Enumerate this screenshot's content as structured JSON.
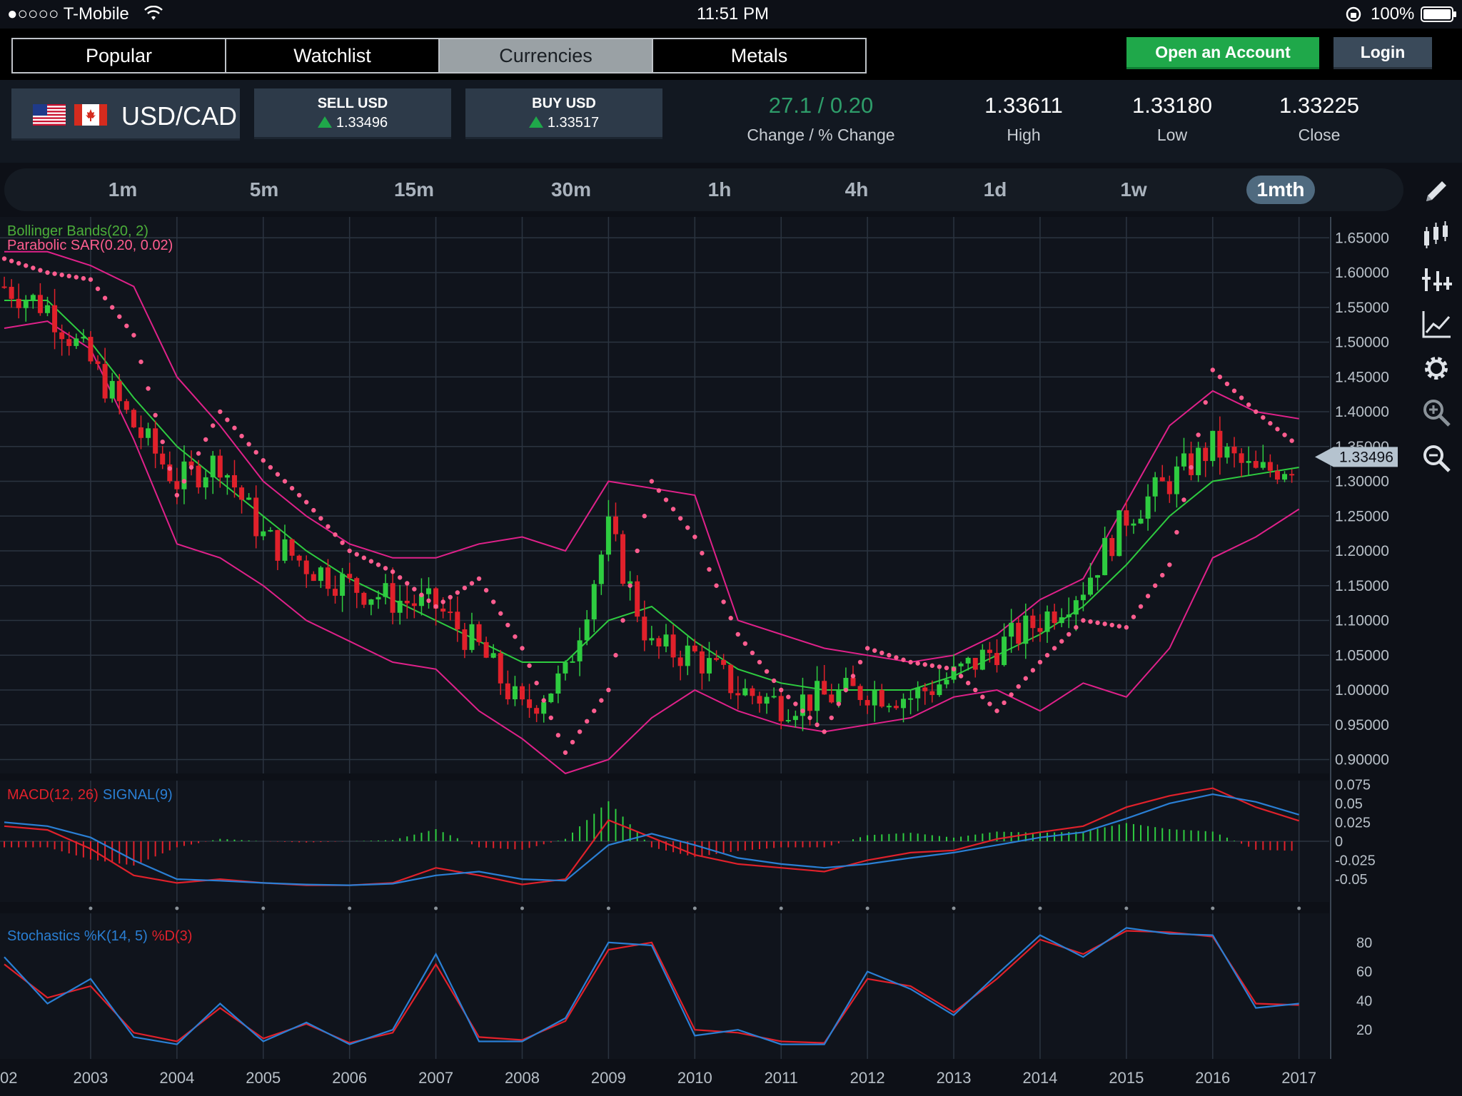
{
  "status": {
    "carrier": "●○○○○ T-Mobile",
    "time": "11:51 PM",
    "battery": "100%"
  },
  "tabs": [
    {
      "label": "Popular"
    },
    {
      "label": "Watchlist"
    },
    {
      "label": "Currencies"
    },
    {
      "label": "Metals"
    }
  ],
  "header": {
    "open_account": "Open an Account",
    "login": "Login"
  },
  "quote": {
    "pair": "USD/CAD",
    "sell_label": "SELL USD",
    "sell_price": "1.33496",
    "buy_label": "BUY USD",
    "buy_price": "1.33517",
    "change_value": "27.1 / 0.20",
    "change_label": "Change / % Change",
    "high_value": "1.33611",
    "high_label": "High",
    "low_value": "1.33180",
    "low_label": "Low",
    "close_value": "1.33225",
    "close_label": "Close",
    "colors": {
      "up": "#1fa84a",
      "accent": "#2e9d6a"
    }
  },
  "timeframes": [
    {
      "label": "1m"
    },
    {
      "label": "5m"
    },
    {
      "label": "15m"
    },
    {
      "label": "30m"
    },
    {
      "label": "1h"
    },
    {
      "label": "4h"
    },
    {
      "label": "1d"
    },
    {
      "label": "1w"
    },
    {
      "label": "1mth"
    }
  ],
  "active_timeframe": "1mth",
  "tools": [
    "pencil-icon",
    "candles-icon",
    "crosshair-icon",
    "line-chart-icon",
    "gear-icon",
    "zoom-in-icon",
    "zoom-out-icon"
  ],
  "chart_data": {
    "type": "line",
    "price": {
      "indicator_labels": [
        "Bollinger Bands(20, 2)",
        "Parabolic SAR(0.20, 0.02)"
      ],
      "y_ticks": [
        "1.65000",
        "1.60000",
        "1.55000",
        "1.50000",
        "1.45000",
        "1.40000",
        "1.35000",
        "1.30000",
        "1.25000",
        "1.20000",
        "1.15000",
        "1.10000",
        "1.05000",
        "1.00000",
        "0.95000",
        "0.90000"
      ],
      "ylim": [
        0.88,
        1.68
      ],
      "current_price": "1.33496",
      "x_years": [
        2002,
        2002.5,
        2003,
        2003.5,
        2004,
        2004.5,
        2005,
        2005.5,
        2006,
        2006.5,
        2007,
        2007.5,
        2008,
        2008.5,
        2009,
        2009.5,
        2010,
        2010.5,
        2011,
        2011.5,
        2012,
        2012.5,
        2013,
        2013.5,
        2014,
        2014.5,
        2015,
        2015.5,
        2016,
        2016.5,
        2017
      ],
      "close": [
        1.58,
        1.55,
        1.47,
        1.38,
        1.3,
        1.33,
        1.22,
        1.18,
        1.15,
        1.13,
        1.12,
        1.06,
        0.97,
        1.02,
        1.23,
        1.06,
        1.05,
        1.0,
        0.98,
        0.99,
        1.0,
        0.99,
        1.02,
        1.06,
        1.1,
        1.15,
        1.25,
        1.3,
        1.35,
        1.31,
        1.33
      ],
      "bb_mid": [
        1.56,
        1.56,
        1.5,
        1.42,
        1.35,
        1.3,
        1.25,
        1.2,
        1.16,
        1.13,
        1.1,
        1.07,
        1.04,
        1.04,
        1.1,
        1.12,
        1.07,
        1.03,
        1.01,
        1.0,
        1.0,
        1.0,
        1.02,
        1.05,
        1.08,
        1.12,
        1.18,
        1.25,
        1.3,
        1.31,
        1.32
      ],
      "bb_upper": [
        1.63,
        1.63,
        1.61,
        1.58,
        1.45,
        1.38,
        1.3,
        1.25,
        1.21,
        1.19,
        1.19,
        1.21,
        1.22,
        1.2,
        1.3,
        1.29,
        1.28,
        1.1,
        1.08,
        1.06,
        1.05,
        1.04,
        1.05,
        1.08,
        1.13,
        1.16,
        1.27,
        1.38,
        1.43,
        1.4,
        1.39
      ],
      "bb_lower": [
        1.52,
        1.53,
        1.49,
        1.36,
        1.21,
        1.19,
        1.15,
        1.1,
        1.07,
        1.04,
        1.03,
        0.97,
        0.93,
        0.88,
        0.9,
        0.96,
        1.0,
        0.97,
        0.95,
        0.94,
        0.95,
        0.96,
        0.99,
        1.0,
        0.97,
        1.01,
        0.99,
        1.06,
        1.19,
        1.22,
        1.26
      ],
      "sar": [
        1.62,
        1.6,
        1.59,
        1.51,
        1.28,
        1.4,
        1.33,
        1.27,
        1.2,
        1.17,
        1.12,
        1.16,
        1.06,
        0.91,
        1.0,
        1.3,
        1.22,
        1.08,
        1.0,
        0.94,
        1.06,
        1.04,
        1.03,
        0.97,
        1.04,
        1.1,
        1.09,
        1.18,
        1.46,
        1.4,
        1.35
      ]
    },
    "macd": {
      "label_macd": "MACD(12, 26)",
      "label_signal": "SIGNAL(9)",
      "y_ticks": [
        "0.075",
        "0.05",
        "0.025",
        "0",
        "-0.025",
        "-0.05"
      ],
      "ylim": [
        -0.08,
        0.08
      ],
      "macd": [
        0.02,
        0.015,
        -0.01,
        -0.045,
        -0.055,
        -0.05,
        -0.055,
        -0.058,
        -0.058,
        -0.055,
        -0.035,
        -0.045,
        -0.057,
        -0.05,
        0.028,
        0.005,
        -0.018,
        -0.03,
        -0.035,
        -0.04,
        -0.025,
        -0.015,
        -0.012,
        0.003,
        0.012,
        0.02,
        0.045,
        0.06,
        0.07,
        0.045,
        0.027
      ],
      "signal": [
        0.025,
        0.02,
        0.005,
        -0.025,
        -0.05,
        -0.052,
        -0.055,
        -0.057,
        -0.058,
        -0.056,
        -0.045,
        -0.04,
        -0.05,
        -0.052,
        -0.005,
        0.01,
        -0.005,
        -0.022,
        -0.03,
        -0.035,
        -0.03,
        -0.022,
        -0.015,
        -0.005,
        0.005,
        0.012,
        0.03,
        0.05,
        0.062,
        0.052,
        0.035
      ],
      "hist_colors": {
        "pos": "#2ecc40",
        "neg": "#e0212b"
      }
    },
    "stochastics": {
      "label_k": "Stochastics %K(14, 5)",
      "label_d": "%D(3)",
      "y_ticks": [
        "80",
        "60",
        "40",
        "20"
      ],
      "ylim": [
        0,
        100
      ],
      "k": [
        70,
        38,
        55,
        15,
        10,
        38,
        12,
        25,
        10,
        20,
        72,
        12,
        12,
        28,
        80,
        78,
        16,
        20,
        10,
        10,
        60,
        48,
        30,
        58,
        85,
        70,
        90,
        86,
        85,
        35,
        38
      ],
      "d": [
        65,
        42,
        50,
        18,
        12,
        35,
        14,
        24,
        11,
        18,
        65,
        15,
        13,
        26,
        75,
        80,
        20,
        18,
        12,
        11,
        55,
        50,
        32,
        55,
        82,
        72,
        88,
        87,
        84,
        38,
        37
      ]
    },
    "x_tick_labels": [
      "02",
      "2003",
      "2004",
      "2005",
      "2006",
      "2007",
      "2008",
      "2009",
      "2010",
      "2011",
      "2012",
      "2013",
      "2014",
      "2015",
      "2016",
      "2017"
    ],
    "colors": {
      "bb_mid": "#2ecc40",
      "bb_band": "#e0218a",
      "sar": "#ff5d8f",
      "bull": "#2ecc40",
      "bear": "#e0212b",
      "macd": "#e0212b",
      "signal": "#2a7fd4",
      "k": "#2a7fd4",
      "d": "#e0212b"
    }
  }
}
